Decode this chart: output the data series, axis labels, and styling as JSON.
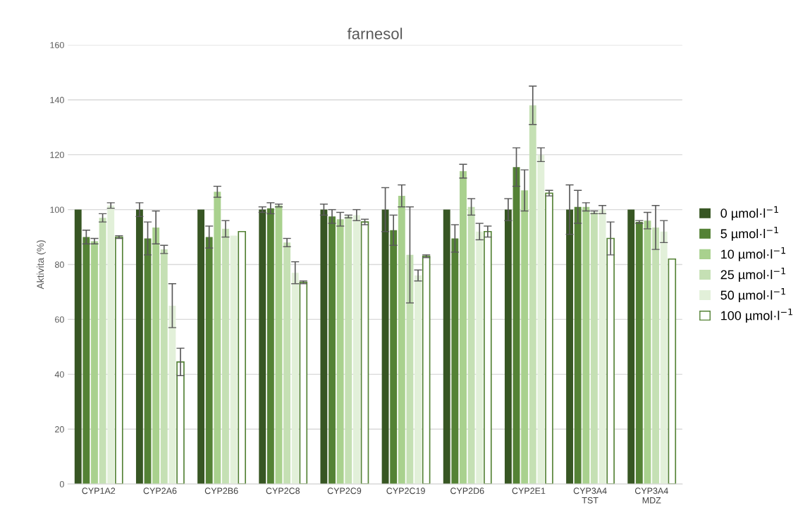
{
  "chart_data": {
    "type": "bar",
    "title": "farnesol",
    "ylabel": "Aktivita (%)",
    "categories": [
      "CYP1A2",
      "CYP2A6",
      "CYP2B6",
      "CYP2C8",
      "CYP2C9",
      "CYP2C19",
      "CYP2D6",
      "CYP2E1",
      "CYP3A4\nTST",
      "CYP3A4\nMDZ"
    ],
    "series": [
      {
        "name": "0 µmol·l$^{−1}$",
        "color": "#375623",
        "values": [
          100,
          100,
          100,
          100,
          100,
          100,
          100,
          100,
          100,
          100
        ],
        "errors": [
          null,
          2.5,
          null,
          1,
          2,
          8,
          null,
          4,
          9,
          null
        ]
      },
      {
        "name": "5 µmol·l$^{−1}$",
        "color": "#548235",
        "values": [
          90,
          89.5,
          90,
          100.5,
          97.5,
          92.5,
          89.5,
          115.5,
          101,
          95.5
        ],
        "errors": [
          2.5,
          6,
          4,
          2,
          2.5,
          5.5,
          5,
          7,
          6,
          0.5
        ]
      },
      {
        "name": "10 µmol·l$^{−1}$",
        "color": "#a9d18e",
        "values": [
          88.5,
          93.5,
          106.5,
          101.5,
          96.5,
          105,
          114,
          107,
          101,
          96
        ],
        "errors": [
          1,
          6,
          2,
          0.5,
          2.5,
          4,
          2.5,
          7.5,
          1.5,
          3
        ]
      },
      {
        "name": "25 µmol·l$^{−1}$",
        "color": "#c5e0b4",
        "values": [
          97,
          85.5,
          93,
          88,
          97.5,
          83.5,
          101,
          138,
          99,
          93.5
        ],
        "errors": [
          1.5,
          1.5,
          3,
          1.5,
          0.5,
          17.5,
          3,
          7,
          0.5,
          8
        ]
      },
      {
        "name": "50 µmol·l$^{−1}$",
        "color": "#e2f0d9",
        "values": [
          101.5,
          65,
          90.5,
          77,
          98,
          76,
          92,
          120,
          100,
          92
        ],
        "errors": [
          1,
          8,
          null,
          4,
          2,
          2,
          3,
          2.5,
          1.5,
          4
        ]
      },
      {
        "name": "100 µmol·l$^{−1}$",
        "color": "#ffffff",
        "values": [
          90,
          44.5,
          92,
          73.5,
          95.5,
          83,
          92,
          106,
          89.5,
          82
        ],
        "errors": [
          0.5,
          5,
          null,
          0.5,
          1,
          0.5,
          2,
          1,
          6,
          null
        ]
      }
    ],
    "ylim": [
      0,
      160
    ],
    "yticks": [
      0,
      20,
      40,
      60,
      80,
      100,
      120,
      140,
      160
    ],
    "grid": "y",
    "legend": "right"
  }
}
